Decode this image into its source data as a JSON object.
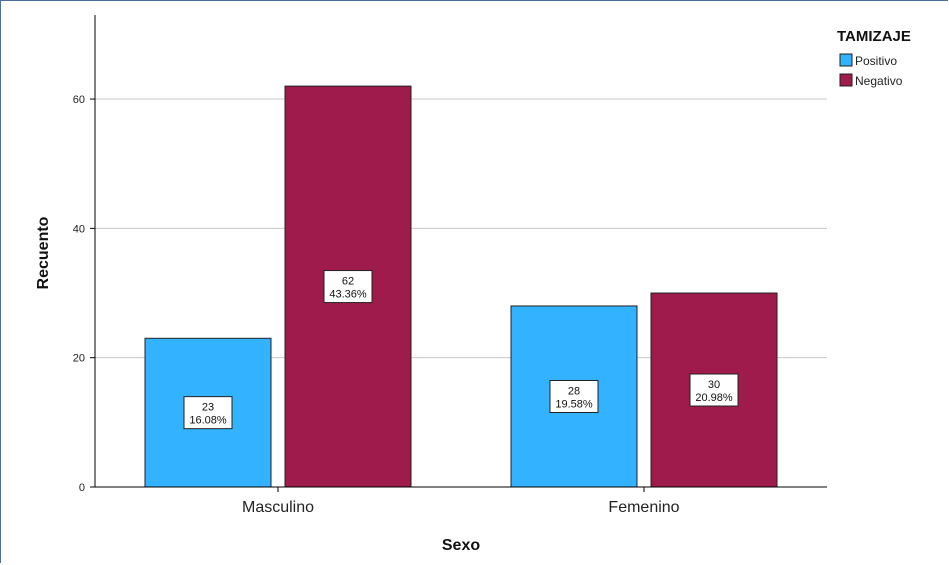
{
  "chart_data": {
    "type": "bar",
    "categories": [
      "Masculino",
      "Femenino"
    ],
    "series": [
      {
        "name": "Positivo",
        "color": "#33b2ff",
        "values": [
          23,
          28
        ],
        "percents": [
          "16.08%",
          "19.58%"
        ]
      },
      {
        "name": "Negativo",
        "color": "#9e1b4c",
        "values": [
          62,
          30
        ],
        "percents": [
          "43.36%",
          "20.98%"
        ]
      }
    ],
    "xlabel": "Sexo",
    "ylabel": "Recuento",
    "ylim": [
      0,
      73
    ],
    "yticks": [
      0,
      20,
      40,
      60
    ],
    "legend_title": "TAMIZAJE",
    "legend_position": "top-right",
    "grid": true
  }
}
